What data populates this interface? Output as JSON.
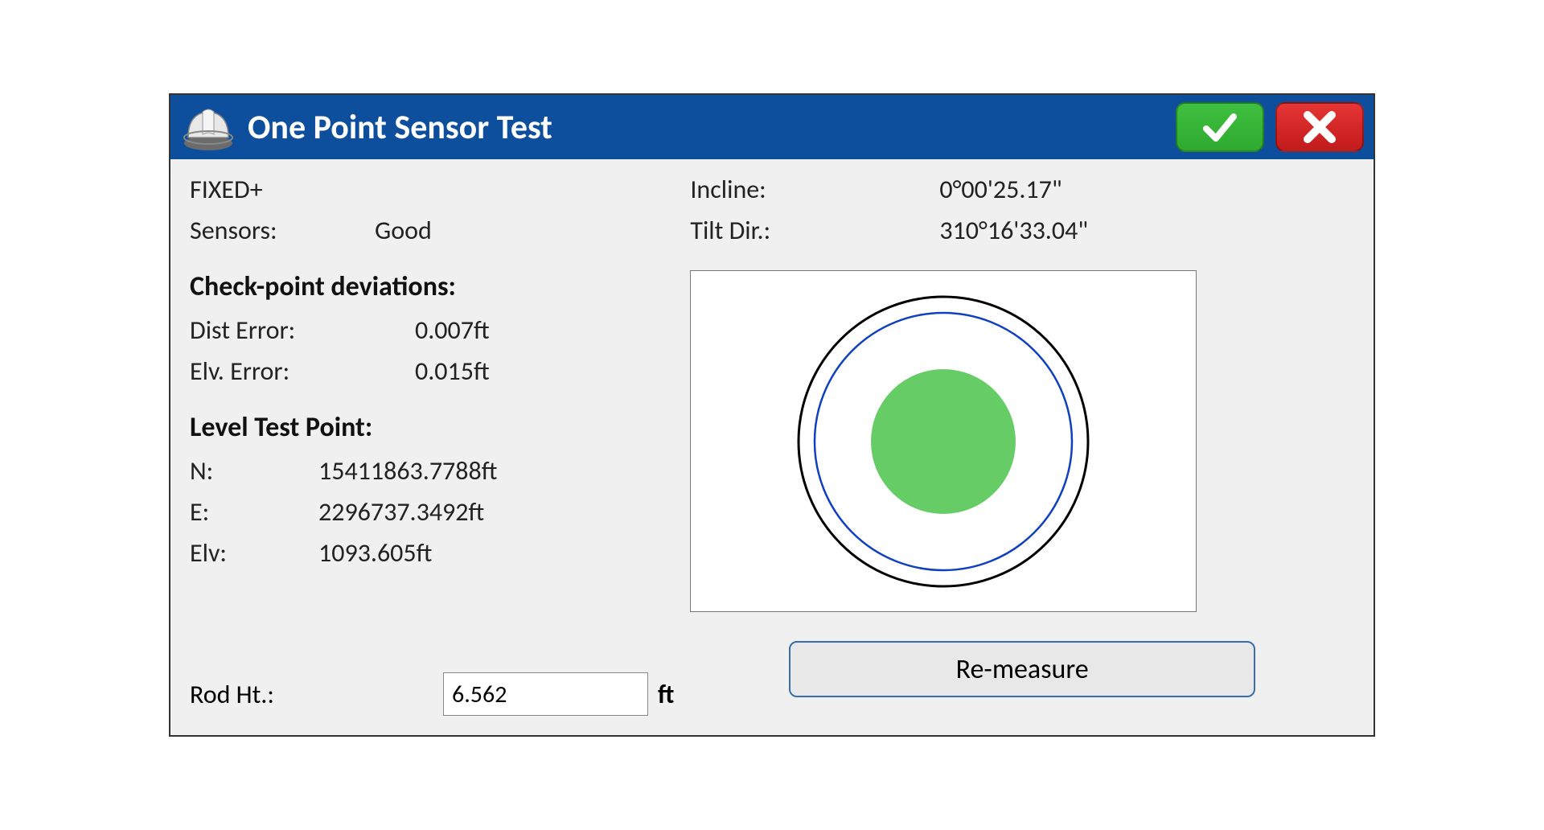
{
  "title": "One Point Sensor Test",
  "titlebar": {
    "bg_color": "#0d4f9c",
    "title_color": "#ffffff",
    "ok_color": "#2faa2f",
    "cancel_color": "#c11b1b"
  },
  "status": {
    "fix": "FIXED+",
    "sensors_label": "Sensors:",
    "sensors_value": "Good"
  },
  "deviations": {
    "heading": "Check-point deviations:",
    "dist_label": "Dist Error:",
    "dist_value": "0.007ft",
    "elv_label": "Elv. Error:",
    "elv_value": "0.015ft"
  },
  "level_point": {
    "heading": "Level Test Point:",
    "n_label": "N:",
    "n_value": "15411863.7788ft",
    "e_label": "E:",
    "e_value": "2296737.3492ft",
    "elv_label": "Elv:",
    "elv_value": "1093.605ft"
  },
  "rod": {
    "label": "Rod Ht.:",
    "value": "6.562",
    "unit": "ft"
  },
  "tilt": {
    "incline_label": "Incline:",
    "incline_value": "0°00'25.17\"",
    "tiltdir_label": "Tilt Dir.:",
    "tiltdir_value": "310°16'33.04\""
  },
  "level_indicator": {
    "outer_ring_color": "#000000",
    "inner_ring_color": "#1040c0",
    "bubble_color": "#66cc66",
    "outer_radius": 180,
    "inner_radius": 160,
    "bubble_radius": 90,
    "bubble_offset_x": 0,
    "bubble_offset_y": 0,
    "background": "#ffffff"
  },
  "buttons": {
    "remeasure": "Re-measure"
  }
}
